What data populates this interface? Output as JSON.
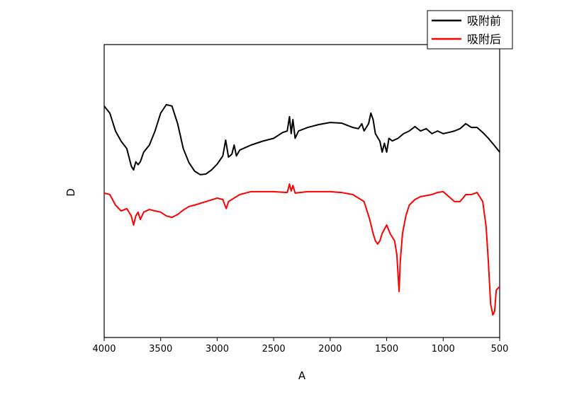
{
  "chart_data": {
    "type": "line",
    "x_label": "A",
    "y_label": "D",
    "xlim": [
      4000,
      500
    ],
    "ylim": [
      0,
      100
    ],
    "xticks": [
      4000,
      3500,
      3000,
      2500,
      2000,
      1500,
      1000,
      500
    ],
    "legend": "top-right",
    "series": [
      {
        "name": "吸附前",
        "color": "#000000",
        "x": [
          4000,
          3950,
          3900,
          3850,
          3800,
          3760,
          3740,
          3720,
          3700,
          3680,
          3650,
          3600,
          3550,
          3500,
          3450,
          3400,
          3350,
          3300,
          3250,
          3200,
          3150,
          3100,
          3050,
          3000,
          2950,
          2925,
          2900,
          2870,
          2850,
          2830,
          2800,
          2700,
          2600,
          2500,
          2420,
          2380,
          2360,
          2345,
          2330,
          2310,
          2280,
          2200,
          2100,
          2000,
          1900,
          1800,
          1750,
          1720,
          1700,
          1660,
          1640,
          1620,
          1600,
          1560,
          1540,
          1520,
          1500,
          1480,
          1450,
          1400,
          1350,
          1300,
          1250,
          1200,
          1150,
          1100,
          1050,
          1000,
          950,
          900,
          850,
          800,
          750,
          700,
          650,
          600,
          550,
          500
        ],
        "values": [
          79,
          76.6,
          70.5,
          67,
          64.5,
          58.5,
          57.2,
          60,
          59,
          60,
          63.3,
          65.7,
          70.5,
          76.6,
          79.5,
          79,
          73,
          64.5,
          59.7,
          56.8,
          55.6,
          55.8,
          57.2,
          59.2,
          62,
          67.4,
          61.6,
          62.6,
          65.7,
          62,
          64,
          65.7,
          67,
          68,
          70,
          70.5,
          75.4,
          69.6,
          74.4,
          68,
          70.5,
          71.7,
          72.7,
          73.4,
          73.2,
          71.7,
          71.3,
          73,
          70.5,
          73,
          76.6,
          74.4,
          69.6,
          67,
          63.3,
          66.3,
          63.3,
          68,
          67.1,
          68,
          69.6,
          70.5,
          72,
          70.5,
          71.3,
          69.6,
          70.5,
          69.6,
          70,
          70.5,
          71.3,
          73,
          71.7,
          71.7,
          70,
          68,
          65.7,
          63.3
        ]
      },
      {
        "name": "吸附后",
        "color": "#ff0000",
        "x": [
          4000,
          3950,
          3900,
          3850,
          3800,
          3760,
          3740,
          3720,
          3700,
          3680,
          3650,
          3600,
          3550,
          3500,
          3450,
          3400,
          3350,
          3300,
          3250,
          3200,
          3100,
          3000,
          2950,
          2920,
          2900,
          2850,
          2800,
          2700,
          2500,
          2380,
          2360,
          2345,
          2330,
          2310,
          2200,
          2000,
          1900,
          1800,
          1750,
          1700,
          1650,
          1620,
          1600,
          1580,
          1560,
          1540,
          1500,
          1470,
          1430,
          1410,
          1390,
          1380,
          1360,
          1330,
          1300,
          1250,
          1200,
          1100,
          1050,
          1000,
          950,
          900,
          850,
          800,
          750,
          700,
          650,
          620,
          600,
          580,
          560,
          545,
          530,
          500
        ],
        "values": [
          49.3,
          48.8,
          45.2,
          43.2,
          44,
          41.5,
          38.4,
          41.5,
          42.8,
          40.3,
          42.8,
          43.7,
          43.2,
          42.8,
          41.5,
          41,
          42,
          43.5,
          44.7,
          45.2,
          46.4,
          47.6,
          47.1,
          44,
          46.4,
          47.6,
          48.8,
          49.8,
          49.8,
          49.5,
          52.4,
          50,
          51.9,
          49.3,
          49.8,
          49.8,
          49.5,
          48.8,
          47.6,
          46.4,
          40.3,
          35.5,
          33,
          31.9,
          33,
          35.5,
          38.4,
          35.5,
          33,
          28.3,
          15.7,
          25.8,
          35.5,
          41.5,
          45.2,
          47.1,
          48.1,
          48.8,
          49.5,
          49.8,
          48.1,
          46.4,
          46.4,
          48.8,
          48.8,
          49.5,
          46.4,
          37.9,
          25.8,
          11.4,
          7.7,
          8.9,
          16.2,
          17.4
        ]
      }
    ]
  }
}
